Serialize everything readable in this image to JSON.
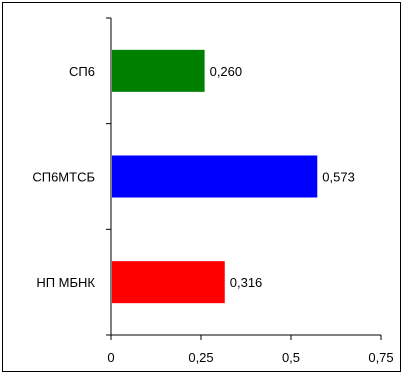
{
  "chart_data": {
    "type": "bar",
    "orientation": "horizontal",
    "categories": [
      "СП6",
      "СП6МТСБ",
      "НП МБНК"
    ],
    "values": [
      0.26,
      0.573,
      0.316
    ],
    "value_labels": [
      "0,260",
      "0,573",
      "0,316"
    ],
    "bar_colors": [
      "#008000",
      "#0000ff",
      "#ff0000"
    ],
    "xlim": [
      0,
      0.75
    ],
    "xticks": [
      0,
      0.25,
      0.5,
      0.75
    ],
    "xtick_labels": [
      "0",
      "0,25",
      "0,5",
      "0,75"
    ],
    "title": "",
    "xlabel": "",
    "ylabel": "",
    "grid": false,
    "legend": "none"
  }
}
